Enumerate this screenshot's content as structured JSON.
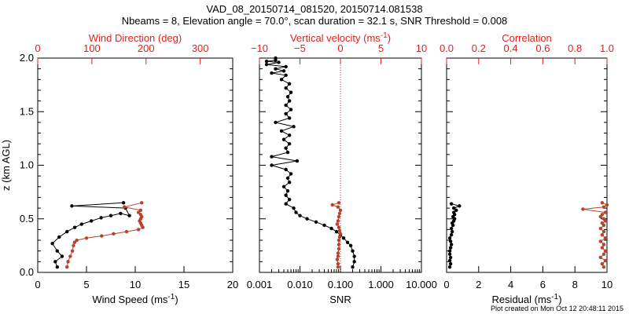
{
  "header": {
    "title": "VAD_08_20150714_081520, 20150714.081538",
    "subtitle": "Nbeams = 8, Elevation angle = 70.0°, scan duration = 32.1 s, SNR Threshold = 0.008"
  },
  "footer": {
    "created": "Plot created on Mon Oct 12 20:48:11 2015"
  },
  "colors": {
    "primary": "#000000",
    "secondary": "#b5432f",
    "secondary_axis": "#e0211c"
  },
  "chart_data": [
    {
      "type": "line",
      "ylabel": "z (km AGL)",
      "ylim": [
        0,
        2
      ],
      "yticks": [
        "0.0",
        "0.5",
        "1.0",
        "1.5",
        "2.0"
      ],
      "bottom_axis": {
        "label": "Wind Speed (ms⁻¹)",
        "range": [
          0,
          20
        ],
        "ticks": [
          "0",
          "5",
          "10",
          "15",
          "20"
        ]
      },
      "top_axis": {
        "label": "Wind Direction (deg)",
        "range": [
          0,
          360
        ],
        "ticks": [
          "0",
          "100",
          "200",
          "300"
        ]
      },
      "series": [
        {
          "color": "black",
          "axis": "bottom",
          "x": [
            2.0,
            1.8,
            2.5,
            2.0,
            1.5,
            2.2,
            3.0,
            3.8,
            4.5,
            5.5,
            6.5,
            7.5,
            8.5,
            9.4,
            9.0,
            3.5,
            8.8
          ],
          "y": [
            0.05,
            0.1,
            0.15,
            0.2,
            0.27,
            0.33,
            0.38,
            0.42,
            0.45,
            0.48,
            0.51,
            0.53,
            0.55,
            0.53,
            0.6,
            0.62,
            0.65
          ]
        },
        {
          "color": "brown",
          "axis": "top",
          "x": [
            54,
            56,
            60,
            64,
            66,
            68,
            72,
            90,
            118,
            140,
            164,
            186,
            194,
            192,
            190,
            188,
            190,
            192,
            190,
            186,
            190,
            160,
            192
          ],
          "y": [
            0.05,
            0.1,
            0.15,
            0.2,
            0.25,
            0.28,
            0.3,
            0.32,
            0.34,
            0.36,
            0.38,
            0.4,
            0.42,
            0.44,
            0.46,
            0.48,
            0.5,
            0.52,
            0.54,
            0.56,
            0.58,
            0.61,
            0.65
          ]
        }
      ]
    },
    {
      "type": "line",
      "bottom_axis": {
        "label": "SNR",
        "scale": "log",
        "range": [
          0.001,
          10
        ],
        "ticks": [
          "0.001",
          "0.010",
          "0.100",
          "1.000",
          "10.000"
        ]
      },
      "top_axis": {
        "label": "Vertical velocity (ms⁻¹)",
        "range": [
          -10,
          10
        ],
        "ticks": [
          "−10",
          "−5",
          "0",
          "5",
          "10"
        ]
      },
      "reference_line": {
        "axis": "top",
        "value": 0,
        "style": "dotted"
      },
      "series": [
        {
          "color": "black",
          "axis": "bottom",
          "x": [
            0.2,
            0.22,
            0.22,
            0.2,
            0.18,
            0.15,
            0.12,
            0.1,
            0.08,
            0.06,
            0.04,
            0.025,
            0.015,
            0.01,
            0.008,
            0.007,
            0.0045,
            0.0055,
            0.0045,
            0.005,
            0.004,
            0.0055,
            0.005,
            0.006,
            0.0045,
            0.002,
            0.0085,
            0.002,
            0.005,
            0.0045,
            0.0055,
            0.004,
            0.0055,
            0.0035,
            0.007,
            0.0025,
            0.0055,
            0.0045,
            0.006,
            0.0045,
            0.0055,
            0.005,
            0.006,
            0.0045,
            0.0055,
            0.0035,
            0.0045,
            0.002,
            0.004,
            0.0025,
            0.0045,
            0.0015,
            0.003,
            0.0015,
            0.0025,
            0.0025
          ],
          "y": [
            0.05,
            0.1,
            0.15,
            0.2,
            0.25,
            0.28,
            0.32,
            0.35,
            0.38,
            0.41,
            0.44,
            0.47,
            0.5,
            0.53,
            0.56,
            0.6,
            0.64,
            0.68,
            0.72,
            0.76,
            0.8,
            0.84,
            0.88,
            0.92,
            0.96,
            1.0,
            1.04,
            1.08,
            1.12,
            1.16,
            1.2,
            1.24,
            1.28,
            1.32,
            1.36,
            1.4,
            1.44,
            1.48,
            1.52,
            1.56,
            1.6,
            1.64,
            1.68,
            1.72,
            1.76,
            1.8,
            1.84,
            1.86,
            1.88,
            1.9,
            1.92,
            1.94,
            1.96,
            1.97,
            1.98,
            2.0
          ]
        },
        {
          "color": "brown",
          "axis": "top",
          "x": [
            -0.3,
            -0.3,
            -0.4,
            -0.3,
            -0.3,
            -0.2,
            -0.2,
            -0.2,
            -0.1,
            0.0,
            -0.1,
            -0.2,
            -0.4,
            -0.3,
            -0.2,
            -0.1,
            0.0,
            -0.3,
            -1.0,
            -0.2
          ],
          "y": [
            0.05,
            0.08,
            0.12,
            0.15,
            0.18,
            0.22,
            0.26,
            0.3,
            0.33,
            0.36,
            0.39,
            0.42,
            0.45,
            0.48,
            0.52,
            0.55,
            0.58,
            0.61,
            0.63,
            0.65
          ]
        }
      ]
    },
    {
      "type": "line",
      "bottom_axis": {
        "label": "Residual (ms⁻¹)",
        "range": [
          0,
          10
        ],
        "ticks": [
          "0",
          "2",
          "4",
          "6",
          "8",
          "10"
        ]
      },
      "top_axis": {
        "label": "Correlation",
        "range": [
          0,
          1
        ],
        "ticks": [
          "0.0",
          "0.2",
          "0.4",
          "0.6",
          "0.8",
          "1.0"
        ]
      },
      "series": [
        {
          "color": "black",
          "axis": "bottom",
          "x": [
            0.2,
            0.25,
            0.2,
            0.25,
            0.2,
            0.2,
            0.25,
            0.3,
            0.25,
            0.2,
            0.3,
            0.35,
            0.3,
            0.4,
            0.35,
            0.45,
            0.5,
            0.4,
            0.5,
            0.45,
            0.6,
            0.45,
            0.8,
            0.3
          ],
          "y": [
            0.05,
            0.08,
            0.11,
            0.14,
            0.17,
            0.2,
            0.23,
            0.26,
            0.29,
            0.32,
            0.35,
            0.38,
            0.41,
            0.44,
            0.46,
            0.48,
            0.5,
            0.52,
            0.54,
            0.56,
            0.58,
            0.6,
            0.62,
            0.64
          ]
        },
        {
          "color": "brown",
          "axis": "top",
          "x": [
            0.98,
            0.97,
            0.99,
            0.96,
            0.98,
            0.99,
            0.97,
            0.98,
            0.96,
            0.99,
            0.97,
            0.98,
            0.96,
            0.98,
            0.97,
            0.99,
            0.98,
            0.96,
            0.97,
            0.99,
            0.85,
            0.98,
            1.0,
            0.97
          ],
          "y": [
            0.05,
            0.08,
            0.11,
            0.14,
            0.17,
            0.2,
            0.23,
            0.26,
            0.29,
            0.32,
            0.35,
            0.38,
            0.41,
            0.44,
            0.46,
            0.48,
            0.5,
            0.52,
            0.54,
            0.56,
            0.59,
            0.61,
            0.63,
            0.65
          ]
        }
      ]
    }
  ]
}
